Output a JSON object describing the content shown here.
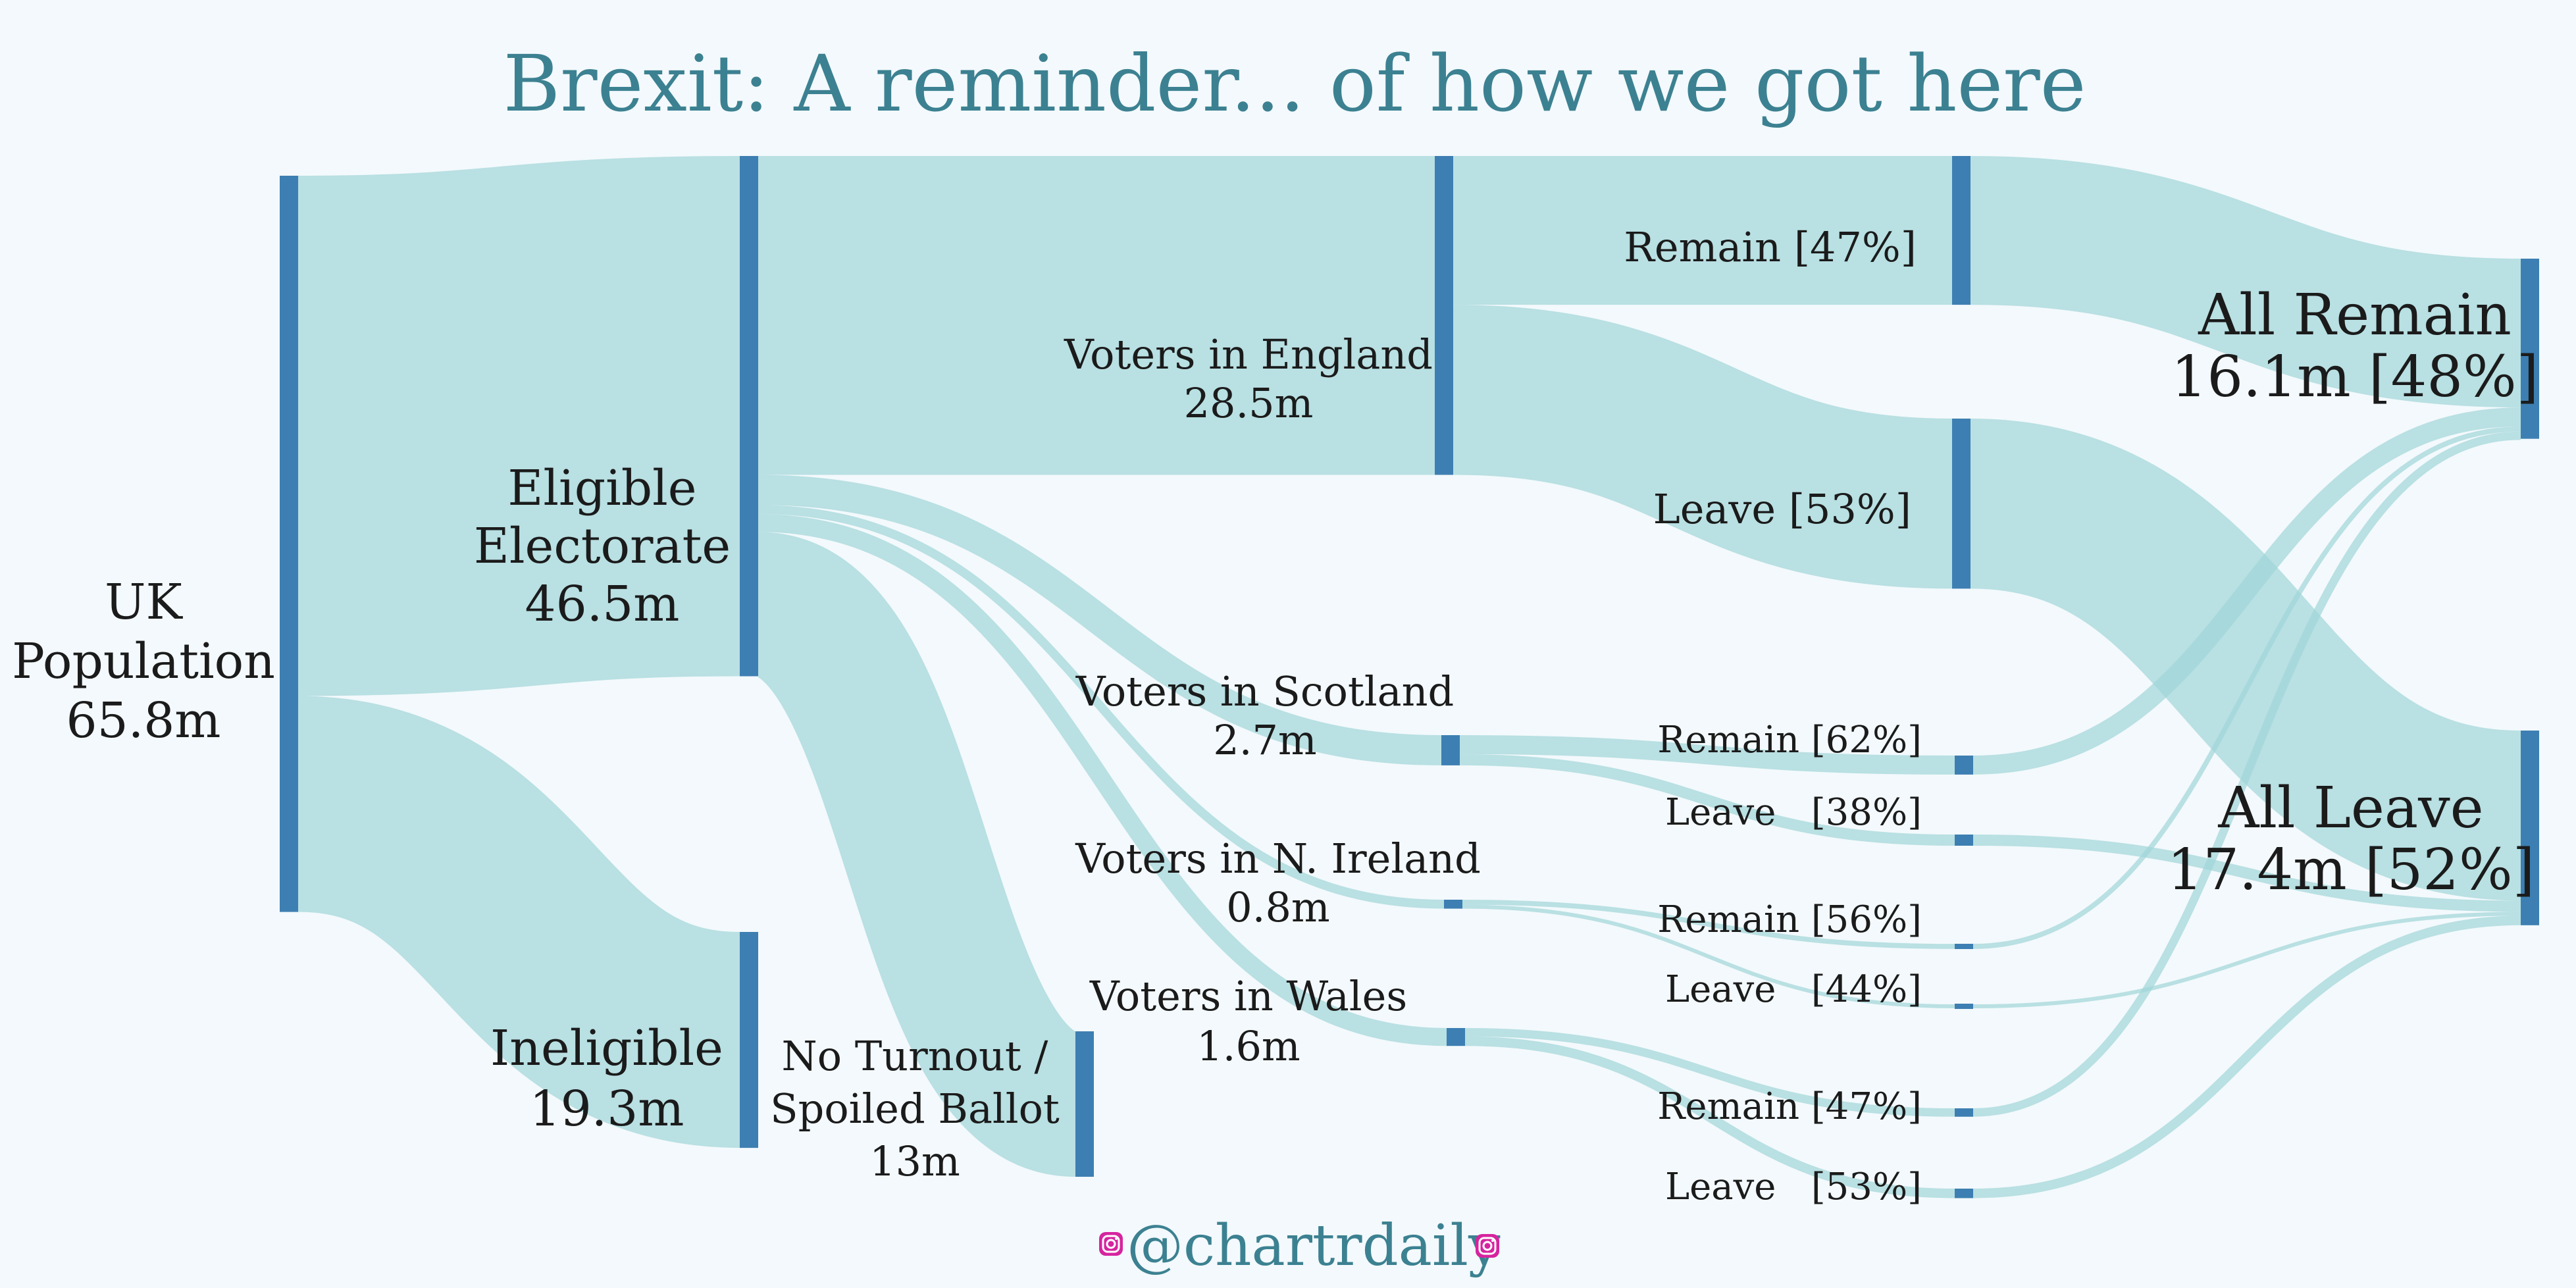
{
  "title": "Brexit: A reminder... of how we got here",
  "handle": "@chartrdaily",
  "icons": [
    "instagram-icon",
    "instagram-icon"
  ],
  "colors": {
    "background": "#f3f9fc",
    "title": "#3c8191",
    "node": "#3d7fb2",
    "flow": "#9fd5d8",
    "text": "#1b1b1b"
  },
  "chart_data": {
    "type": "sankey",
    "units": "millions of people",
    "nodes": [
      {
        "id": "uk",
        "label": [
          "UK",
          "Population",
          "65.8m"
        ],
        "value": 65.8
      },
      {
        "id": "eligible",
        "label": [
          "Eligible",
          "Electorate",
          "46.5m"
        ],
        "value": 46.5
      },
      {
        "id": "ineligible",
        "label": [
          "Ineligible",
          "19.3m"
        ],
        "value": 19.3
      },
      {
        "id": "england",
        "label": [
          "Voters in England",
          "28.5m"
        ],
        "value": 28.5
      },
      {
        "id": "scotland",
        "label": [
          "Voters in Scotland",
          "2.7m"
        ],
        "value": 2.7
      },
      {
        "id": "ni",
        "label": [
          "Voters in N. Ireland",
          "0.8m"
        ],
        "value": 0.8
      },
      {
        "id": "wales",
        "label": [
          "Voters in Wales",
          "1.6m"
        ],
        "value": 1.6
      },
      {
        "id": "noturnout",
        "label": [
          "No Turnout /",
          "Spoiled Ballot",
          "13m"
        ],
        "value": 13
      },
      {
        "id": "eng_remain",
        "label": [
          "Remain [47%]"
        ],
        "value": 13.3
      },
      {
        "id": "eng_leave",
        "label": [
          "Leave [53%]"
        ],
        "value": 15.2
      },
      {
        "id": "sco_remain",
        "label": [
          "Remain [62%]"
        ],
        "value": 1.7
      },
      {
        "id": "sco_leave",
        "label": [
          "Leave   [38%]"
        ],
        "value": 1.0
      },
      {
        "id": "ni_remain",
        "label": [
          "Remain [56%]"
        ],
        "value": 0.45
      },
      {
        "id": "ni_leave",
        "label": [
          "Leave   [44%]"
        ],
        "value": 0.35
      },
      {
        "id": "wal_remain",
        "label": [
          "Remain [47%]"
        ],
        "value": 0.75
      },
      {
        "id": "wal_leave",
        "label": [
          "Leave   [53%]"
        ],
        "value": 0.85
      },
      {
        "id": "all_remain",
        "label": [
          "All Remain",
          "16.1m [48%]"
        ],
        "value": 16.1
      },
      {
        "id": "all_leave",
        "label": [
          "All Leave",
          "17.4m [52%]"
        ],
        "value": 17.4
      }
    ],
    "links": [
      {
        "source": "uk",
        "target": "eligible",
        "value": 46.5
      },
      {
        "source": "uk",
        "target": "ineligible",
        "value": 19.3
      },
      {
        "source": "eligible",
        "target": "england",
        "value": 28.5
      },
      {
        "source": "eligible",
        "target": "scotland",
        "value": 2.7
      },
      {
        "source": "eligible",
        "target": "ni",
        "value": 0.8
      },
      {
        "source": "eligible",
        "target": "wales",
        "value": 1.6
      },
      {
        "source": "eligible",
        "target": "noturnout",
        "value": 13
      },
      {
        "source": "england",
        "target": "eng_remain",
        "value": 13.3
      },
      {
        "source": "england",
        "target": "eng_leave",
        "value": 15.2
      },
      {
        "source": "scotland",
        "target": "sco_remain",
        "value": 1.7
      },
      {
        "source": "scotland",
        "target": "sco_leave",
        "value": 1.0
      },
      {
        "source": "ni",
        "target": "ni_remain",
        "value": 0.45
      },
      {
        "source": "ni",
        "target": "ni_leave",
        "value": 0.35
      },
      {
        "source": "wales",
        "target": "wal_remain",
        "value": 0.75
      },
      {
        "source": "wales",
        "target": "wal_leave",
        "value": 0.85
      },
      {
        "source": "eng_remain",
        "target": "all_remain",
        "value": 13.3
      },
      {
        "source": "eng_leave",
        "target": "all_leave",
        "value": 15.2
      },
      {
        "source": "sco_remain",
        "target": "all_remain",
        "value": 1.7
      },
      {
        "source": "sco_leave",
        "target": "all_leave",
        "value": 1.0
      },
      {
        "source": "ni_remain",
        "target": "all_remain",
        "value": 0.45
      },
      {
        "source": "ni_leave",
        "target": "all_leave",
        "value": 0.35
      },
      {
        "source": "wal_remain",
        "target": "all_remain",
        "value": 0.75
      },
      {
        "source": "wal_leave",
        "target": "all_leave",
        "value": 0.85
      }
    ]
  }
}
